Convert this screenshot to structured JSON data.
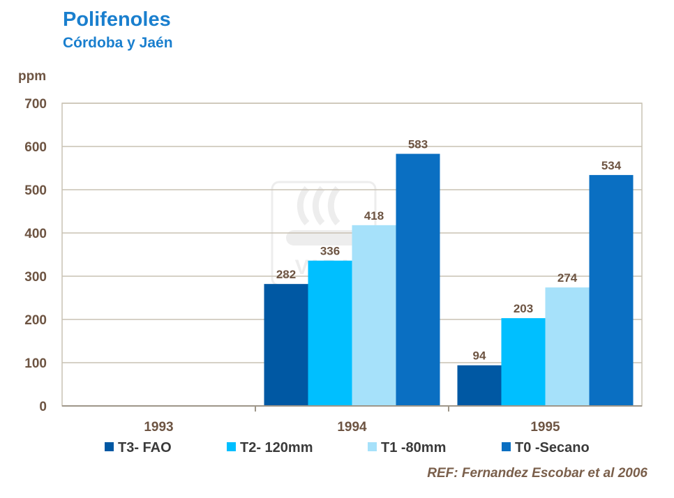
{
  "title": "Polifenoles",
  "subtitle": "Córdoba y Jaén",
  "reference": "REF: Fernandez Escobar et al 2006",
  "watermark": "VARA",
  "chart_data": {
    "type": "bar",
    "ylabel": "ppm",
    "ylim": [
      0,
      700
    ],
    "yticks": [
      0,
      100,
      200,
      300,
      400,
      500,
      600,
      700
    ],
    "grid": true,
    "legend_position": "bottom",
    "categories": [
      "1993",
      "1994",
      "1995"
    ],
    "series": [
      {
        "name": "T3- FAO",
        "color": "#0058a3",
        "values": [
          null,
          282,
          94
        ]
      },
      {
        "name": "T2- 120mm",
        "color": "#00bfff",
        "values": [
          null,
          336,
          203
        ]
      },
      {
        "name": "T1 -80mm",
        "color": "#a6e1fa",
        "values": [
          null,
          418,
          274
        ]
      },
      {
        "name": "T0 -Secano",
        "color": "#0a6fc2",
        "values": [
          null,
          583,
          534
        ]
      }
    ]
  }
}
